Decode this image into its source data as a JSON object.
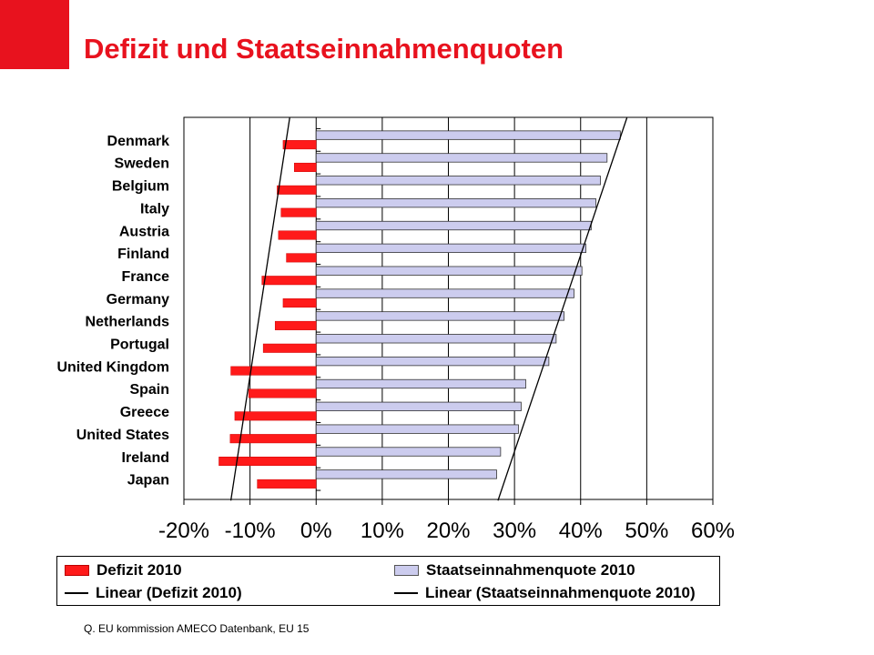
{
  "slide": {
    "title": "Defizit und Staatseinnahmenquoten",
    "source": "Q. EU kommission AMECO Datenbank, EU 15"
  },
  "colors": {
    "accent": "#e8121e",
    "deficit_bar": "#ff1a1a",
    "revenue_bar": "#ccccee"
  },
  "chart_data": {
    "type": "bar",
    "orientation": "horizontal",
    "categories": [
      "Denmark",
      "Sweden",
      "Belgium",
      "Italy",
      "Austria",
      "Finland",
      "France",
      "Germany",
      "Netherlands",
      "Portugal",
      "United Kingdom",
      "Spain",
      "Greece",
      "United States",
      "Ireland",
      "Japan"
    ],
    "series": [
      {
        "name": "Defizit 2010",
        "values": [
          -5.0,
          -3.3,
          -5.9,
          -5.3,
          -5.7,
          -4.5,
          -8.2,
          -5.0,
          -6.2,
          -8.0,
          -12.9,
          -10.2,
          -12.3,
          -13.0,
          -14.7,
          -8.9
        ]
      },
      {
        "name": "Staatseinnahmenquote 2010",
        "values": [
          46.0,
          44.0,
          43.0,
          42.3,
          41.6,
          40.8,
          40.2,
          39.0,
          37.5,
          36.3,
          35.2,
          31.7,
          31.0,
          30.6,
          27.9,
          27.3
        ]
      }
    ],
    "trendlines": [
      {
        "name": "Linear (Defizit 2010)",
        "start": -4.0,
        "end": -12.9
      },
      {
        "name": "Linear (Staatseinnahmenquote 2010)",
        "start": 47.0,
        "end": 27.5
      }
    ],
    "xlim": [
      -20,
      60
    ],
    "xticks": [
      -20,
      -10,
      0,
      10,
      20,
      30,
      40,
      50,
      60
    ],
    "xtick_labels": [
      "-20%",
      "-10%",
      "0%",
      "10%",
      "20%",
      "30%",
      "40%",
      "50%",
      "60%"
    ],
    "grid": true,
    "legend_position": "bottom"
  },
  "legend": {
    "items": [
      "Defizit 2010",
      "Staatseinnahmenquote 2010",
      "Linear (Defizit 2010)",
      "Linear (Staatseinnahmenquote 2010)"
    ]
  }
}
